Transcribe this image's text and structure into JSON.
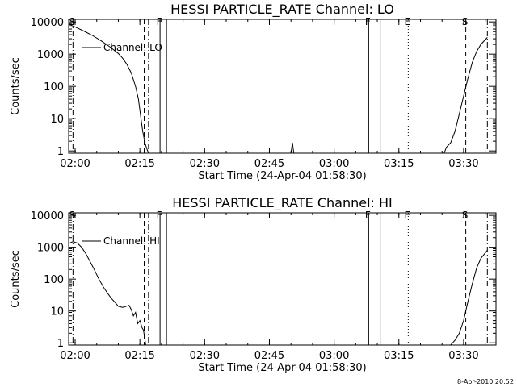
{
  "chart_data": [
    {
      "type": "line",
      "title": "HESSI PARTICLE_RATE Channel: LO",
      "xlabel": "Start Time (24-Apr-04 01:58:30)",
      "ylabel": "Counts/sec",
      "yscale": "log",
      "xlim": [
        "01:58:30",
        "03:37:30"
      ],
      "ylim": [
        0.85,
        12000
      ],
      "xticks": [
        "02:00",
        "02:15",
        "02:30",
        "02:45",
        "03:00",
        "03:15",
        "03:30"
      ],
      "yticks": [
        "1",
        "10",
        "100",
        "1000",
        "10000"
      ],
      "legend": "Channel: LO",
      "legend_position": "top-left",
      "markers": [
        {
          "label": "S",
          "time": "01:59:30",
          "style": "dash-dot"
        },
        {
          "label": "",
          "time": "02:16:00",
          "style": "dashed"
        },
        {
          "label": "",
          "time": "02:17:00",
          "style": "dash-dot"
        },
        {
          "label": "F",
          "time": "02:19:40",
          "style": "solid"
        },
        {
          "label": "",
          "time": "02:21:10",
          "style": "solid"
        },
        {
          "label": "F",
          "time": "03:08:00",
          "style": "solid"
        },
        {
          "label": "",
          "time": "03:10:40",
          "style": "solid"
        },
        {
          "label": "E",
          "time": "03:17:10",
          "style": "dotted"
        },
        {
          "label": "S",
          "time": "03:30:30",
          "style": "dashed"
        },
        {
          "label": "",
          "time": "03:35:30",
          "style": "dash-dot"
        }
      ],
      "series": [
        {
          "name": "Channel: LO",
          "segments": [
            {
              "x": [
                "01:58:30",
                "02:00:00",
                "02:02:00",
                "02:04:00",
                "02:06:00",
                "02:08:00",
                "02:10:00",
                "02:11:00",
                "02:12:00",
                "02:13:00",
                "02:14:00",
                "02:14:40",
                "02:15:10",
                "02:15:40",
                "02:16:10",
                "02:16:40",
                "02:17:00"
              ],
              "y": [
                8500,
                7000,
                5200,
                3800,
                2600,
                1700,
                1050,
                750,
                480,
                260,
                100,
                40,
                12,
                4,
                1.8,
                1.1,
                0.86
              ]
            },
            {
              "x": [
                "02:50:00",
                "02:50:20",
                "02:50:40"
              ],
              "y": [
                0.86,
                1.8,
                0.86
              ]
            },
            {
              "x": [
                "03:25:30",
                "03:26:00",
                "03:27:00",
                "03:28:00",
                "03:29:00",
                "03:30:00",
                "03:31:00",
                "03:32:00",
                "03:33:00",
                "03:34:00",
                "03:35:30"
              ],
              "y": [
                0.86,
                1.3,
                1.8,
                4,
                14,
                50,
                180,
                550,
                1200,
                2000,
                3300
              ]
            }
          ]
        }
      ]
    },
    {
      "type": "line",
      "title": "HESSI PARTICLE_RATE Channel: HI",
      "xlabel": "Start Time (24-Apr-04 01:58:30)",
      "ylabel": "Counts/sec",
      "yscale": "log",
      "xlim": [
        "01:58:30",
        "03:37:30"
      ],
      "ylim": [
        0.85,
        12000
      ],
      "xticks": [
        "02:00",
        "02:15",
        "02:30",
        "02:45",
        "03:00",
        "03:15",
        "03:30"
      ],
      "yticks": [
        "1",
        "10",
        "100",
        "1000",
        "10000"
      ],
      "legend": "Channel: HI",
      "legend_position": "top-left",
      "markers": [
        {
          "label": "S",
          "time": "01:59:30",
          "style": "dash-dot"
        },
        {
          "label": "",
          "time": "02:16:00",
          "style": "dashed"
        },
        {
          "label": "",
          "time": "02:17:00",
          "style": "dash-dot"
        },
        {
          "label": "F",
          "time": "02:19:40",
          "style": "solid"
        },
        {
          "label": "",
          "time": "02:21:10",
          "style": "solid"
        },
        {
          "label": "F",
          "time": "03:08:00",
          "style": "solid"
        },
        {
          "label": "",
          "time": "03:10:40",
          "style": "solid"
        },
        {
          "label": "E",
          "time": "03:17:10",
          "style": "dotted"
        },
        {
          "label": "S",
          "time": "03:30:30",
          "style": "dashed"
        },
        {
          "label": "",
          "time": "03:35:30",
          "style": "dash-dot"
        }
      ],
      "series": [
        {
          "name": "Channel: HI",
          "segments": [
            {
              "x": [
                "01:58:30",
                "01:59:30",
                "02:00:30",
                "02:01:30",
                "02:02:30",
                "02:03:30",
                "02:04:30",
                "02:05:30",
                "02:06:30",
                "02:07:30",
                "02:08:30",
                "02:09:30",
                "02:10:00",
                "02:11:00",
                "02:11:30",
                "02:12:30",
                "02:13:00",
                "02:13:30",
                "02:14:00",
                "02:14:30",
                "02:15:00",
                "02:15:30",
                "02:15:50",
                "02:16:10",
                "02:16:20"
              ],
              "y": [
                1300,
                1500,
                1350,
                1000,
                620,
                350,
                190,
                100,
                58,
                36,
                24,
                17,
                14,
                13,
                13.5,
                15,
                11,
                7,
                9,
                4,
                5,
                3,
                2.5,
                1.3,
                0.86
              ]
            },
            {
              "x": [
                "03:27:00",
                "03:28:00",
                "03:29:00",
                "03:30:00",
                "03:31:00",
                "03:32:00",
                "03:33:00",
                "03:34:00",
                "03:35:30"
              ],
              "y": [
                0.86,
                1.2,
                2,
                5,
                20,
                70,
                220,
                450,
                800
              ]
            }
          ]
        }
      ]
    }
  ],
  "footer": {
    "date_stamp": "8-Apr-2010 20:52"
  }
}
